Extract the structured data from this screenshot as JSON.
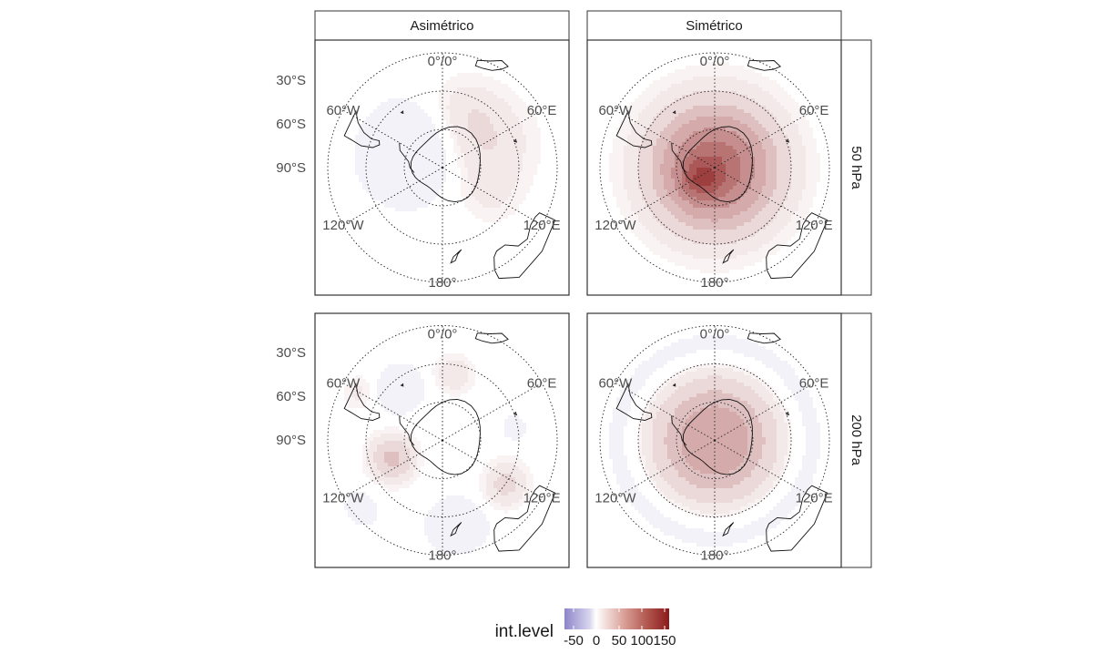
{
  "chart_data": {
    "type": "heatmap",
    "projection": "south polar stereographic",
    "columns": [
      "Asimétrico",
      "Simétrico"
    ],
    "rows": [
      "50 hPa",
      "200 hPa"
    ],
    "lat_labels": [
      "30°S",
      "60°S",
      "90°S"
    ],
    "lon_labels": {
      "top": "0°/0°",
      "upper_left": "60°W",
      "upper_right": "60°E",
      "lower_left": "120°W",
      "lower_right": "120°E",
      "bottom": "180°"
    },
    "legend": {
      "title": "int.level",
      "ticks": [
        "-50",
        "0",
        "50",
        "100",
        "150"
      ],
      "tick_values": [
        -50,
        0,
        50,
        100,
        150
      ],
      "range": [
        -70,
        160
      ],
      "colors": {
        "negative": "#8d86c9",
        "zero": "#ffffff",
        "positive": "#8b1a1a"
      }
    },
    "panels": [
      {
        "column": "Asimétrico",
        "row": "50 hPa",
        "features": [
          {
            "lat": -72,
            "lon": -65,
            "value": -30,
            "spread": 16
          },
          {
            "lat": -65,
            "lon": 60,
            "value": 20,
            "spread": 18
          },
          {
            "lat": -58,
            "lon": 20,
            "value": 10,
            "spread": 12
          },
          {
            "lat": -60,
            "lon": 120,
            "value": 8,
            "spread": 10
          }
        ]
      },
      {
        "column": "Simétrico",
        "row": "50 hPa",
        "features": [
          {
            "lat": -90,
            "lon": 0,
            "value": 110,
            "spread": 22
          },
          {
            "lat": -80,
            "lon": -130,
            "value": 40,
            "spread": 7
          }
        ]
      },
      {
        "column": "Asimétrico",
        "row": "200 hPa",
        "features": [
          {
            "lat": -55,
            "lon": -40,
            "value": -30,
            "spread": 7
          },
          {
            "lat": -62,
            "lon": -110,
            "value": 40,
            "spread": 8
          },
          {
            "lat": -45,
            "lon": 170,
            "value": -22,
            "spread": 9
          },
          {
            "lat": -50,
            "lon": 125,
            "value": 25,
            "spread": 8
          },
          {
            "lat": -55,
            "lon": 10,
            "value": 18,
            "spread": 7
          },
          {
            "lat": -40,
            "lon": -60,
            "value": 12,
            "spread": 6
          },
          {
            "lat": -52,
            "lon": 80,
            "value": -15,
            "spread": 4
          },
          {
            "lat": -35,
            "lon": -130,
            "value": -12,
            "spread": 6
          }
        ]
      },
      {
        "column": "Simétrico",
        "row": "200 hPa",
        "features": [
          {
            "lat": -90,
            "lon": 0,
            "value": 70,
            "spread": 22
          },
          {
            "lat": -42,
            "lon": 0,
            "value": -12,
            "spread": 8,
            "ring": true
          }
        ]
      }
    ]
  }
}
